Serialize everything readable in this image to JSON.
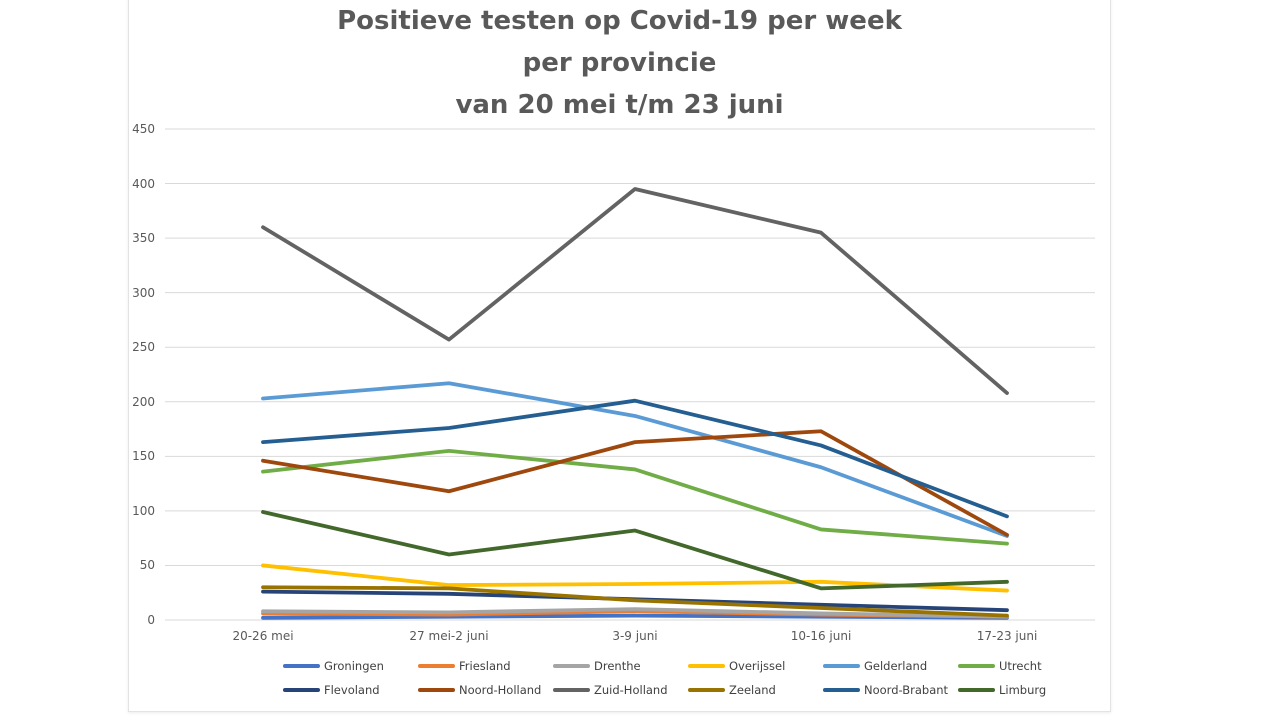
{
  "title": {
    "lines": [
      "Positieve testen op Covid-19 per week",
      "per provincie",
      "van 20 mei t/m 23 juni"
    ]
  },
  "colors": {
    "axis_text": "#595959",
    "gridline": "#d9d9d9",
    "card_background": "#ffffff"
  },
  "chart_data": {
    "type": "line",
    "title": "Positieve testen op Covid-19 per week per provincie van 20 mei t/m 23 juni",
    "xlabel": "",
    "ylabel": "",
    "ylim": [
      0,
      450
    ],
    "y_tick_step": 50,
    "grid": true,
    "legend_position": "bottom",
    "categories": [
      "20-26 mei",
      "27 mei-2 juni",
      "3-9 juni",
      "10-16 juni",
      "17-23 juni"
    ],
    "series": [
      {
        "name": "Groningen",
        "color": "#4472C4",
        "values": [
          2,
          3,
          4,
          3,
          2
        ]
      },
      {
        "name": "Friesland",
        "color": "#ED7D31",
        "values": [
          6,
          5,
          8,
          5,
          3
        ]
      },
      {
        "name": "Drenthe",
        "color": "#A5A5A5",
        "values": [
          8,
          7,
          10,
          6,
          3
        ]
      },
      {
        "name": "Overijssel",
        "color": "#FFC000",
        "values": [
          50,
          32,
          33,
          35,
          27
        ]
      },
      {
        "name": "Gelderland",
        "color": "#5B9BD5",
        "values": [
          203,
          217,
          187,
          140,
          77
        ]
      },
      {
        "name": "Utrecht",
        "color": "#70AD47",
        "values": [
          136,
          155,
          138,
          83,
          70
        ]
      },
      {
        "name": "Flevoland",
        "color": "#264478",
        "values": [
          26,
          24,
          19,
          14,
          9
        ]
      },
      {
        "name": "Noord-Holland",
        "color": "#9E480E",
        "values": [
          146,
          118,
          163,
          173,
          78
        ]
      },
      {
        "name": "Zuid-Holland",
        "color": "#636363",
        "values": [
          360,
          257,
          395,
          355,
          208
        ]
      },
      {
        "name": "Zeeland",
        "color": "#997300",
        "values": [
          30,
          29,
          18,
          11,
          4
        ]
      },
      {
        "name": "Noord-Brabant",
        "color": "#255E91",
        "values": [
          163,
          176,
          201,
          160,
          95
        ]
      },
      {
        "name": "Limburg",
        "color": "#43682B",
        "values": [
          99,
          60,
          82,
          29,
          35
        ]
      }
    ]
  }
}
